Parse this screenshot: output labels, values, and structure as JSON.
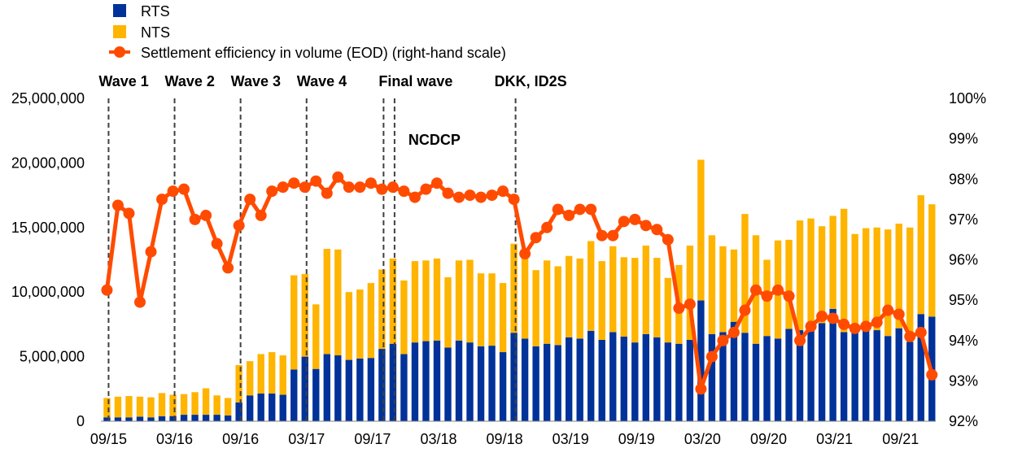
{
  "chart_data": {
    "type": "bar",
    "stacked": true,
    "x": [
      "09/15",
      "10/15",
      "11/15",
      "12/15",
      "01/16",
      "02/16",
      "03/16",
      "04/16",
      "05/16",
      "06/16",
      "07/16",
      "08/16",
      "09/16",
      "10/16",
      "11/16",
      "12/16",
      "01/17",
      "02/17",
      "03/17",
      "04/17",
      "05/17",
      "06/17",
      "07/17",
      "08/17",
      "09/17",
      "10/17",
      "11/17",
      "12/17",
      "01/18",
      "02/18",
      "03/18",
      "04/18",
      "05/18",
      "06/18",
      "07/18",
      "08/18",
      "09/18",
      "10/18",
      "11/18",
      "12/18",
      "01/19",
      "02/19",
      "03/19",
      "04/19",
      "05/19",
      "06/19",
      "07/19",
      "08/19",
      "09/19",
      "10/19",
      "11/19",
      "12/19",
      "01/20",
      "02/20",
      "03/20",
      "04/20",
      "05/20",
      "06/20",
      "07/20",
      "08/20",
      "09/20",
      "10/20",
      "11/20",
      "12/20",
      "01/21",
      "02/21",
      "03/21",
      "04/21",
      "05/21",
      "06/21",
      "07/21",
      "08/21",
      "09/21",
      "10/21",
      "11/21",
      "12/21"
    ],
    "x_tick_labels": [
      "09/15",
      "03/16",
      "09/16",
      "03/17",
      "09/17",
      "03/18",
      "09/18",
      "03/19",
      "09/19",
      "03/20",
      "09/20",
      "03/21",
      "09/21"
    ],
    "series": [
      {
        "name": "RTS",
        "color": "#003299",
        "axis": "left",
        "values": [
          300000,
          300000,
          300000,
          350000,
          300000,
          380000,
          400000,
          500000,
          500000,
          500000,
          500000,
          450000,
          1450000,
          2000000,
          2150000,
          2150000,
          2050000,
          4000000,
          5000000,
          4050000,
          5200000,
          5100000,
          4750000,
          4850000,
          4900000,
          5600000,
          6000000,
          5200000,
          6100000,
          6200000,
          6250000,
          5700000,
          6250000,
          6100000,
          5800000,
          5850000,
          5350000,
          6850000,
          6400000,
          5800000,
          6000000,
          5900000,
          6500000,
          6400000,
          7000000,
          6300000,
          6900000,
          6550000,
          6100000,
          6750000,
          6500000,
          6100000,
          6000000,
          6300000,
          9350000,
          6750000,
          6900000,
          7700000,
          6850000,
          6000000,
          6600000,
          6400000,
          7150000,
          7050000,
          7200000,
          7600000,
          8700000,
          6900000,
          6950000,
          7000000,
          7050000,
          6600000,
          7200000,
          6150000,
          8300000,
          8100000
        ]
      },
      {
        "name": "NTS",
        "color": "#FFB400",
        "axis": "left",
        "values": [
          1500000,
          1600000,
          1650000,
          1550000,
          1550000,
          1800000,
          1650000,
          1600000,
          1750000,
          2050000,
          1500000,
          1350000,
          2900000,
          2650000,
          3050000,
          3200000,
          3050000,
          7300000,
          6400000,
          5000000,
          8150000,
          8200000,
          5250000,
          5350000,
          5800000,
          6150000,
          6600000,
          5700000,
          6300000,
          6250000,
          6350000,
          5450000,
          6200000,
          6400000,
          5650000,
          5600000,
          5350000,
          6900000,
          6350000,
          5900000,
          6450000,
          6100000,
          6300000,
          6200000,
          6950000,
          6100000,
          6650000,
          6150000,
          6550000,
          6850000,
          6150000,
          5000000,
          6100000,
          7300000,
          10900000,
          7650000,
          6650000,
          5600000,
          9200000,
          8400000,
          5900000,
          7600000,
          6900000,
          8500000,
          8500000,
          7500000,
          7200000,
          9550000,
          7550000,
          7950000,
          7950000,
          8250000,
          8100000,
          8850000,
          9200000,
          8700000
        ]
      },
      {
        "name": "Settlement efficiency in volume (EOD) (right-hand scale)",
        "color": "#FF4B00",
        "axis": "right",
        "values": [
          95.25,
          97.35,
          97.15,
          94.95,
          96.2,
          97.5,
          97.7,
          97.75,
          97.0,
          97.1,
          96.4,
          95.8,
          96.85,
          97.5,
          97.1,
          97.7,
          97.8,
          97.9,
          97.8,
          97.95,
          97.65,
          98.05,
          97.8,
          97.8,
          97.9,
          97.75,
          97.8,
          97.7,
          97.55,
          97.75,
          97.9,
          97.65,
          97.55,
          97.6,
          97.55,
          97.6,
          97.7,
          97.5,
          96.15,
          96.55,
          96.8,
          97.25,
          97.1,
          97.25,
          97.25,
          96.6,
          96.6,
          96.95,
          97.0,
          96.85,
          96.75,
          96.5,
          94.8,
          94.9,
          92.8,
          93.6,
          94.0,
          94.2,
          94.75,
          95.25,
          95.1,
          95.25,
          95.1,
          94.0,
          94.35,
          94.6,
          94.55,
          94.4,
          94.3,
          94.35,
          94.45,
          94.75,
          94.65,
          94.1,
          94.2,
          93.15
        ]
      }
    ],
    "ylim_left": [
      0,
      25000000
    ],
    "ylim_right": [
      92,
      100
    ],
    "left_tick_labels": [
      "0",
      "5,000,000",
      "10,000,000",
      "15,000,000",
      "20,000,000",
      "25,000,000"
    ],
    "right_tick_labels": [
      "92%",
      "93%",
      "94%",
      "95%",
      "96%",
      "97%",
      "98%",
      "99%",
      "100%"
    ],
    "annotations": [
      {
        "label": "Wave 1",
        "x_index": 0.35,
        "label_row": "top"
      },
      {
        "label": "Wave 2",
        "x_index": 6.35,
        "label_row": "top"
      },
      {
        "label": "Wave 3",
        "x_index": 12.35,
        "label_row": "top"
      },
      {
        "label": "Wave 4",
        "x_index": 18.35,
        "label_row": "top"
      },
      {
        "label": "Final wave",
        "x_index": 25.35,
        "label_row": "top"
      },
      {
        "label": "NCDCP",
        "x_index": 26.35,
        "label_row": "mid"
      },
      {
        "label": "DKK, ID2S",
        "x_index": 37.35,
        "label_row": "top"
      }
    ],
    "legend_position": "top-left",
    "grid": false
  }
}
